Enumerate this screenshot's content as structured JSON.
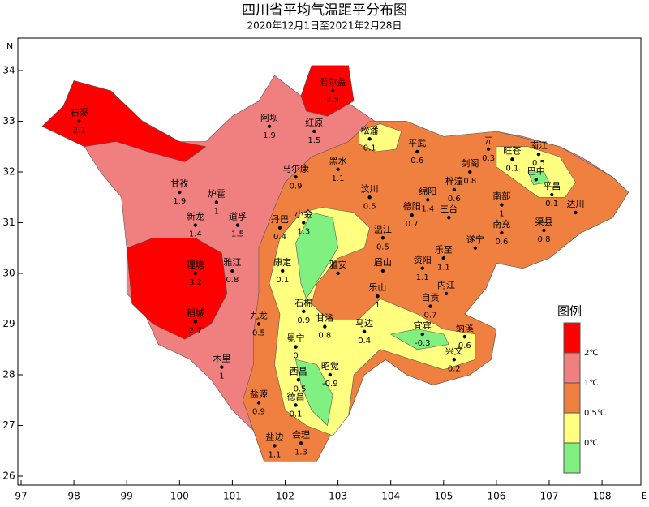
{
  "title": "四川省平均气温距平分布图",
  "subtitle": "2020年12月1日至2021年2月28日",
  "axes": {
    "north_label": "N",
    "east_label": "E",
    "lon_ticks": [
      97,
      98,
      99,
      100,
      101,
      102,
      103,
      104,
      105,
      106,
      107,
      108
    ],
    "lat_ticks": [
      26,
      27,
      28,
      29,
      30,
      31,
      32,
      33,
      34
    ]
  },
  "stations": [
    {
      "name": "石渠",
      "lon": 98.1,
      "lat": 33.0,
      "value": 2.1
    },
    {
      "name": "阿坝",
      "lon": 101.7,
      "lat": 32.9,
      "value": 1.9
    },
    {
      "name": "若尔盖",
      "lon": 102.9,
      "lat": 33.6,
      "value": 2.5
    },
    {
      "name": "红原",
      "lon": 102.55,
      "lat": 32.8,
      "value": 1.5
    },
    {
      "name": "松潘",
      "lon": 103.6,
      "lat": 32.65,
      "value": 0.1
    },
    {
      "name": "平武",
      "lon": 104.5,
      "lat": 32.4,
      "value": 0.6
    },
    {
      "name": "元",
      "lon": 105.85,
      "lat": 32.45,
      "value": 0.3
    },
    {
      "name": "旺苍",
      "lon": 106.3,
      "lat": 32.25,
      "value": 0.1
    },
    {
      "name": "南江",
      "lon": 106.8,
      "lat": 32.35,
      "value": 0.5
    },
    {
      "name": "巴中",
      "lon": 106.75,
      "lat": 31.85
    },
    {
      "name": "平昌",
      "lon": 107.05,
      "lat": 31.55,
      "value": 0.1
    },
    {
      "name": "剑阁",
      "lon": 105.5,
      "lat": 32.0,
      "value": 0.8
    },
    {
      "name": "马尔康",
      "lon": 102.2,
      "lat": 31.9,
      "value": 0.9
    },
    {
      "name": "黑水",
      "lon": 103.0,
      "lat": 32.05,
      "value": 1.1
    },
    {
      "name": "甘孜",
      "lon": 100.0,
      "lat": 31.6,
      "value": 1.9
    },
    {
      "name": "炉霍",
      "lon": 100.7,
      "lat": 31.4,
      "value": 1
    },
    {
      "name": "新龙",
      "lon": 100.3,
      "lat": 30.95,
      "value": 1.4
    },
    {
      "name": "道孚",
      "lon": 101.1,
      "lat": 30.95,
      "value": 1.5
    },
    {
      "name": "汶川",
      "lon": 103.6,
      "lat": 31.5,
      "value": 0.5
    },
    {
      "name": "绵阳",
      "lon": 104.7,
      "lat": 31.45,
      "value": 1.4
    },
    {
      "name": "梓潼",
      "lon": 105.2,
      "lat": 31.65,
      "value": 0.6
    },
    {
      "name": "德阳",
      "lon": 104.4,
      "lat": 31.15,
      "value": 0.7
    },
    {
      "name": "三台",
      "lon": 105.1,
      "lat": 31.1
    },
    {
      "name": "南部",
      "lon": 106.1,
      "lat": 31.35,
      "value": 1
    },
    {
      "name": "达川",
      "lon": 107.5,
      "lat": 31.2
    },
    {
      "name": "南充",
      "lon": 106.1,
      "lat": 30.8,
      "value": 0.6
    },
    {
      "name": "渠县",
      "lon": 106.9,
      "lat": 30.85,
      "value": 0.8
    },
    {
      "name": "遂宁",
      "lon": 105.6,
      "lat": 30.5
    },
    {
      "name": "丹巴",
      "lon": 101.9,
      "lat": 30.9,
      "value": 0.4
    },
    {
      "name": "小金",
      "lon": 102.35,
      "lat": 31.0,
      "value": 1.3
    },
    {
      "name": "温江",
      "lon": 103.85,
      "lat": 30.7,
      "value": 0.5
    },
    {
      "name": "理塘",
      "lon": 100.3,
      "lat": 30.0,
      "value": 3.2
    },
    {
      "name": "雅江",
      "lon": 101.0,
      "lat": 30.05,
      "value": 0.8
    },
    {
      "name": "康定",
      "lon": 101.95,
      "lat": 30.05,
      "value": 0.1
    },
    {
      "name": "雅安",
      "lon": 103.0,
      "lat": 30.0
    },
    {
      "name": "眉山",
      "lon": 103.85,
      "lat": 30.05
    },
    {
      "name": "资阳",
      "lon": 104.6,
      "lat": 30.1,
      "value": 1.1
    },
    {
      "name": "乐至",
      "lon": 105.0,
      "lat": 30.3,
      "value": 1.1
    },
    {
      "name": "内江",
      "lon": 105.05,
      "lat": 29.6
    },
    {
      "name": "乐山",
      "lon": 103.75,
      "lat": 29.55,
      "value": 1
    },
    {
      "name": "自贡",
      "lon": 104.75,
      "lat": 29.35,
      "value": 0.7
    },
    {
      "name": "稻城",
      "lon": 100.3,
      "lat": 29.05,
      "value": 2.7
    },
    {
      "name": "九龙",
      "lon": 101.5,
      "lat": 29.0,
      "value": 0.5
    },
    {
      "name": "石棉",
      "lon": 102.35,
      "lat": 29.25,
      "value": 0.9
    },
    {
      "name": "甘洛",
      "lon": 102.75,
      "lat": 28.95,
      "value": 0.8
    },
    {
      "name": "马边",
      "lon": 103.5,
      "lat": 28.85,
      "value": 0.4
    },
    {
      "name": "宜宾",
      "lon": 104.6,
      "lat": 28.8,
      "value": -0.3
    },
    {
      "name": "纳溪",
      "lon": 105.4,
      "lat": 28.75,
      "value": 0.6
    },
    {
      "name": "兴文",
      "lon": 105.2,
      "lat": 28.3,
      "value": 0.2
    },
    {
      "name": "冕宁",
      "lon": 102.2,
      "lat": 28.55,
      "value": 0
    },
    {
      "name": "木里",
      "lon": 100.8,
      "lat": 28.15,
      "value": 1
    },
    {
      "name": "西昌",
      "lon": 102.25,
      "lat": 27.9,
      "value": -0.5
    },
    {
      "name": "昭觉",
      "lon": 102.85,
      "lat": 28.0,
      "value": -0.9
    },
    {
      "name": "盐源",
      "lon": 101.5,
      "lat": 27.45,
      "value": 0.9
    },
    {
      "name": "德昌",
      "lon": 102.2,
      "lat": 27.4,
      "value": 0.1
    },
    {
      "name": "盐边",
      "lon": 101.8,
      "lat": 26.6,
      "value": 1.1
    },
    {
      "name": "会理",
      "lon": 102.3,
      "lat": 26.65,
      "value": 1.3
    }
  ],
  "legend": {
    "title": "图例",
    "levels": [
      {
        "label": "2℃",
        "color": "#ff0000"
      },
      {
        "label": "1℃",
        "color": "#f08080"
      },
      {
        "label": "0.5℃",
        "color": "#f08040"
      },
      {
        "label": "0℃",
        "color": "#ffff80"
      },
      {
        "color": "#80f080"
      }
    ]
  }
}
